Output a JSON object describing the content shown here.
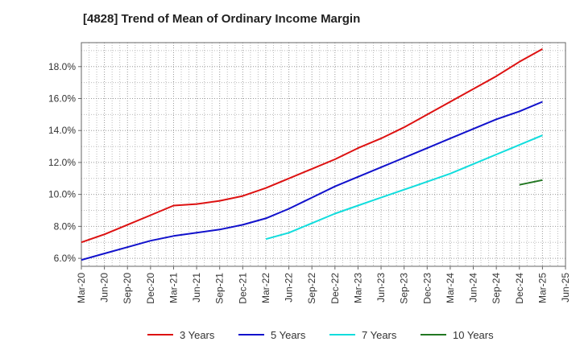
{
  "chart_data": {
    "type": "line",
    "title": "[4828]  Trend of Mean of Ordinary Income Margin",
    "xlabel": "",
    "ylabel": "",
    "x_ticks": [
      "Mar-20",
      "Jun-20",
      "Sep-20",
      "Dec-20",
      "Mar-21",
      "Jun-21",
      "Sep-21",
      "Dec-21",
      "Mar-22",
      "Jun-22",
      "Sep-22",
      "Dec-22",
      "Mar-23",
      "Jun-23",
      "Sep-23",
      "Dec-23",
      "Mar-24",
      "Jun-24",
      "Sep-24",
      "Dec-24",
      "Mar-25",
      "Jun-25"
    ],
    "y_ticks": [
      "6.0%",
      "8.0%",
      "10.0%",
      "12.0%",
      "14.0%",
      "16.0%",
      "18.0%"
    ],
    "ylim": [
      5.5,
      19.5
    ],
    "y_unit": "%",
    "grid": true,
    "legend_position": "bottom",
    "series": [
      {
        "name": "3 Years",
        "color": "#dd1111",
        "x": [
          "Mar-20",
          "Jun-20",
          "Sep-20",
          "Dec-20",
          "Mar-21",
          "Jun-21",
          "Sep-21",
          "Dec-21",
          "Mar-22",
          "Jun-22",
          "Sep-22",
          "Dec-22",
          "Mar-23",
          "Jun-23",
          "Sep-23",
          "Dec-23",
          "Mar-24",
          "Jun-24",
          "Sep-24",
          "Dec-24",
          "Mar-25"
        ],
        "values": [
          7.0,
          7.5,
          8.1,
          8.7,
          9.3,
          9.4,
          9.6,
          9.9,
          10.4,
          11.0,
          11.6,
          12.2,
          12.9,
          13.5,
          14.2,
          15.0,
          15.8,
          16.6,
          17.4,
          18.3,
          19.1
        ]
      },
      {
        "name": "5 Years",
        "color": "#1111cc",
        "x": [
          "Mar-20",
          "Jun-20",
          "Sep-20",
          "Dec-20",
          "Mar-21",
          "Jun-21",
          "Sep-21",
          "Dec-21",
          "Mar-22",
          "Jun-22",
          "Sep-22",
          "Dec-22",
          "Mar-23",
          "Jun-23",
          "Sep-23",
          "Dec-23",
          "Mar-24",
          "Jun-24",
          "Sep-24",
          "Dec-24",
          "Mar-25"
        ],
        "values": [
          5.9,
          6.3,
          6.7,
          7.1,
          7.4,
          7.6,
          7.8,
          8.1,
          8.5,
          9.1,
          9.8,
          10.5,
          11.1,
          11.7,
          12.3,
          12.9,
          13.5,
          14.1,
          14.7,
          15.2,
          15.8
        ]
      },
      {
        "name": "7 Years",
        "color": "#11dddd",
        "x": [
          "Mar-22",
          "Jun-22",
          "Sep-22",
          "Dec-22",
          "Mar-23",
          "Jun-23",
          "Sep-23",
          "Dec-23",
          "Mar-24",
          "Jun-24",
          "Sep-24",
          "Dec-24",
          "Mar-25"
        ],
        "values": [
          7.2,
          7.6,
          8.2,
          8.8,
          9.3,
          9.8,
          10.3,
          10.8,
          11.3,
          11.9,
          12.5,
          13.1,
          13.7
        ]
      },
      {
        "name": "10 Years",
        "color": "#227722",
        "x": [
          "Dec-24",
          "Mar-25"
        ],
        "values": [
          10.6,
          10.9
        ]
      }
    ]
  }
}
